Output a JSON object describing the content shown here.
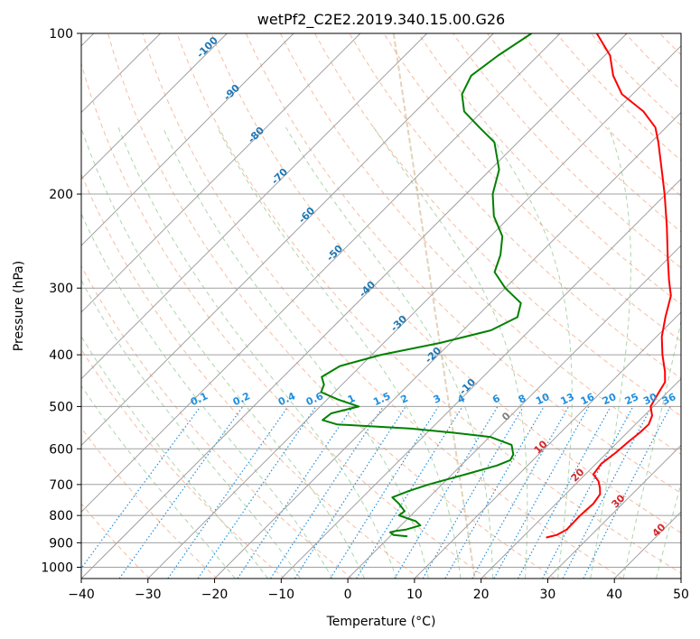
{
  "chart_data": {
    "type": "line",
    "subtype": "skew-t log-p diagram",
    "title": "wetPf2_C2E2.2019.340.15.00.G26",
    "xlabel": "Temperature (°C)",
    "ylabel": "Pressure (hPa)",
    "xlim": [
      -40,
      50
    ],
    "ylim": [
      1050,
      100
    ],
    "y_scale": "log",
    "grid": true,
    "x_ticks": [
      "−40",
      "−30",
      "−20",
      "−10",
      "0",
      "10",
      "20",
      "30",
      "40",
      "50"
    ],
    "y_ticks": [
      "100",
      "200",
      "300",
      "400",
      "500",
      "600",
      "700",
      "800",
      "900",
      "1000"
    ],
    "colors": {
      "temperature": "#ff0000",
      "dewpoint": "#008000",
      "isotherm_grid": "#a0a0a0",
      "dry_adiabat": "#f4a582",
      "moist_adiabat": "#88c488",
      "mixing_ratio": "#1f8fe0",
      "label_blue": "#1f77b4",
      "label_red": "#d62728",
      "label_gray": "#808080",
      "ice_line": "#d2b48c"
    },
    "series": [
      {
        "key": "temperature",
        "points": [
          {
            "p": 880,
            "t": 23.6
          },
          {
            "p": 870,
            "t": 24.8
          },
          {
            "p": 850,
            "t": 25.5
          },
          {
            "p": 800,
            "t": 25.4
          },
          {
            "p": 760,
            "t": 25.6
          },
          {
            "p": 730,
            "t": 25.2
          },
          {
            "p": 710,
            "t": 24.2
          },
          {
            "p": 690,
            "t": 23.0
          },
          {
            "p": 670,
            "t": 21.2
          },
          {
            "p": 640,
            "t": 20.8
          },
          {
            "p": 610,
            "t": 21.3
          },
          {
            "p": 580,
            "t": 21.6
          },
          {
            "p": 560,
            "t": 21.9
          },
          {
            "p": 540,
            "t": 22.0
          },
          {
            "p": 520,
            "t": 21.2
          },
          {
            "p": 500,
            "t": 19.6
          },
          {
            "p": 470,
            "t": 18.7
          },
          {
            "p": 450,
            "t": 18.1
          },
          {
            "p": 430,
            "t": 16.5
          },
          {
            "p": 400,
            "t": 13.6
          },
          {
            "p": 370,
            "t": 10.8
          },
          {
            "p": 340,
            "t": 8.4
          },
          {
            "p": 310,
            "t": 6.0
          },
          {
            "p": 290,
            "t": 3.4
          },
          {
            "p": 260,
            "t": -0.6
          },
          {
            "p": 230,
            "t": -5.0
          },
          {
            "p": 200,
            "t": -10.2
          },
          {
            "p": 180,
            "t": -14.3
          },
          {
            "p": 160,
            "t": -18.9
          },
          {
            "p": 150,
            "t": -21.6
          },
          {
            "p": 140,
            "t": -25.8
          },
          {
            "p": 130,
            "t": -31.6
          },
          {
            "p": 120,
            "t": -35.7
          },
          {
            "p": 110,
            "t": -39.2
          },
          {
            "p": 100,
            "t": -44.5
          }
        ]
      },
      {
        "key": "dewpoint",
        "points": [
          {
            "p": 875,
            "t": 2.6
          },
          {
            "p": 870,
            "t": 0.3
          },
          {
            "p": 860,
            "t": -0.6
          },
          {
            "p": 855,
            "t": 0.1
          },
          {
            "p": 850,
            "t": 1.4
          },
          {
            "p": 835,
            "t": 2.9
          },
          {
            "p": 820,
            "t": 1.6
          },
          {
            "p": 800,
            "t": -1.8
          },
          {
            "p": 785,
            "t": -1.6
          },
          {
            "p": 760,
            "t": -3.6
          },
          {
            "p": 740,
            "t": -5.5
          },
          {
            "p": 720,
            "t": -4.0
          },
          {
            "p": 700,
            "t": -2.0
          },
          {
            "p": 670,
            "t": 2.0
          },
          {
            "p": 645,
            "t": 5.4
          },
          {
            "p": 630,
            "t": 6.6
          },
          {
            "p": 615,
            "t": 6.2
          },
          {
            "p": 590,
            "t": 4.5
          },
          {
            "p": 570,
            "t": 0.1
          },
          {
            "p": 560,
            "t": -6.0
          },
          {
            "p": 550,
            "t": -13.0
          },
          {
            "p": 540,
            "t": -24.8
          },
          {
            "p": 530,
            "t": -27.6
          },
          {
            "p": 515,
            "t": -27.3
          },
          {
            "p": 500,
            "t": -24.2
          },
          {
            "p": 485,
            "t": -28.4
          },
          {
            "p": 470,
            "t": -32.0
          },
          {
            "p": 455,
            "t": -32.7
          },
          {
            "p": 440,
            "t": -34.2
          },
          {
            "p": 420,
            "t": -33.1
          },
          {
            "p": 400,
            "t": -28.6
          },
          {
            "p": 380,
            "t": -21.5
          },
          {
            "p": 360,
            "t": -15.8
          },
          {
            "p": 340,
            "t": -13.8
          },
          {
            "p": 320,
            "t": -15.4
          },
          {
            "p": 300,
            "t": -20.0
          },
          {
            "p": 280,
            "t": -24.0
          },
          {
            "p": 260,
            "t": -25.7
          },
          {
            "p": 240,
            "t": -28.2
          },
          {
            "p": 220,
            "t": -32.5
          },
          {
            "p": 200,
            "t": -36.0
          },
          {
            "p": 180,
            "t": -38.7
          },
          {
            "p": 160,
            "t": -43.5
          },
          {
            "p": 150,
            "t": -48.0
          },
          {
            "p": 140,
            "t": -52.7
          },
          {
            "p": 130,
            "t": -55.6
          },
          {
            "p": 120,
            "t": -57.0
          },
          {
            "p": 110,
            "t": -56.0
          },
          {
            "p": 100,
            "t": -54.3
          }
        ]
      }
    ],
    "isotherm_labels": [
      "-100",
      "-90",
      "-80",
      "-70",
      "-60",
      "-50",
      "-40",
      "-30",
      "-20",
      "-10",
      "0",
      "10",
      "20",
      "30",
      "40"
    ],
    "mixing_ratio_labels": [
      "0.1",
      "0.2",
      "0.4",
      "0.6",
      "1",
      "1.5",
      "2",
      "3",
      "4",
      "6",
      "8",
      "10",
      "13",
      "16",
      "20",
      "25",
      "30",
      "36"
    ]
  }
}
